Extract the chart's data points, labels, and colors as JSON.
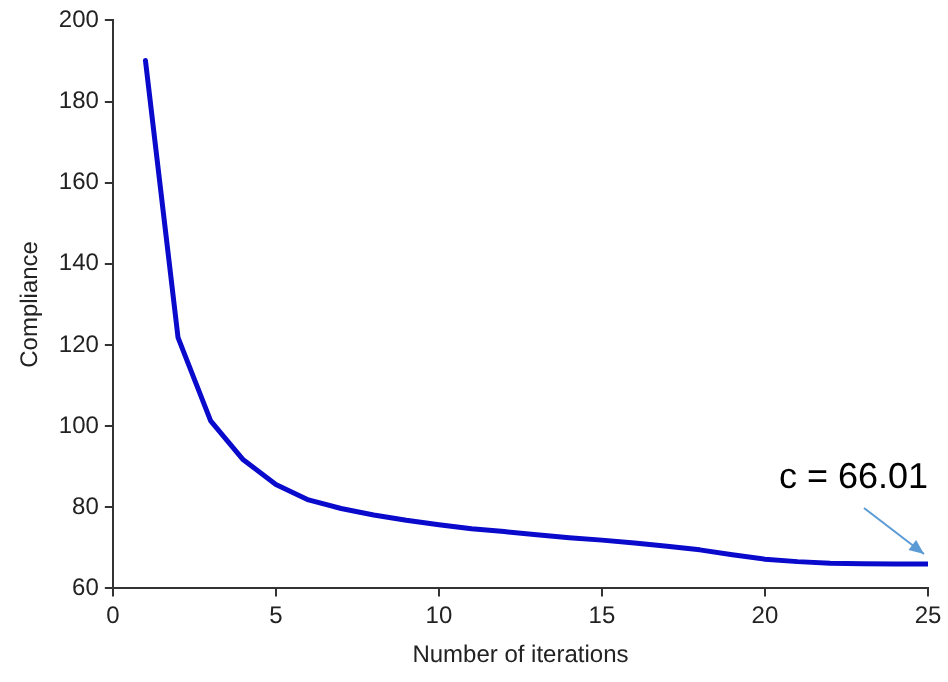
{
  "chart_data": {
    "type": "line",
    "xlabel": "Number of iterations",
    "ylabel": "Compliance",
    "x": [
      1,
      2,
      3,
      4,
      5,
      6,
      7,
      8,
      9,
      10,
      11,
      12,
      13,
      14,
      15,
      16,
      17,
      18,
      19,
      20,
      21,
      22,
      23,
      24,
      25
    ],
    "series": [
      {
        "color": "#0a0acc",
        "values": [
          190.1,
          121.8,
          101.3,
          91.7,
          85.6,
          81.8,
          79.7,
          78.1,
          76.8,
          75.7,
          74.7,
          74,
          73.2,
          72.5,
          71.9,
          71.2,
          70.4,
          69.5,
          68.3,
          67.2,
          66.6,
          66.2,
          66.1,
          66,
          66.01
        ]
      }
    ],
    "xlim": [
      0,
      25
    ],
    "xticks": [
      0,
      5,
      10,
      15,
      20,
      25
    ],
    "ylim": [
      60,
      200
    ],
    "yticks": [
      60,
      80,
      100,
      120,
      140,
      160,
      180,
      200
    ],
    "grid": false,
    "legend": false,
    "marker": "none",
    "line_style": "solid",
    "annotations": [
      {
        "text": "c = 66.01",
        "x": 25,
        "y": 66.01
      }
    ]
  }
}
